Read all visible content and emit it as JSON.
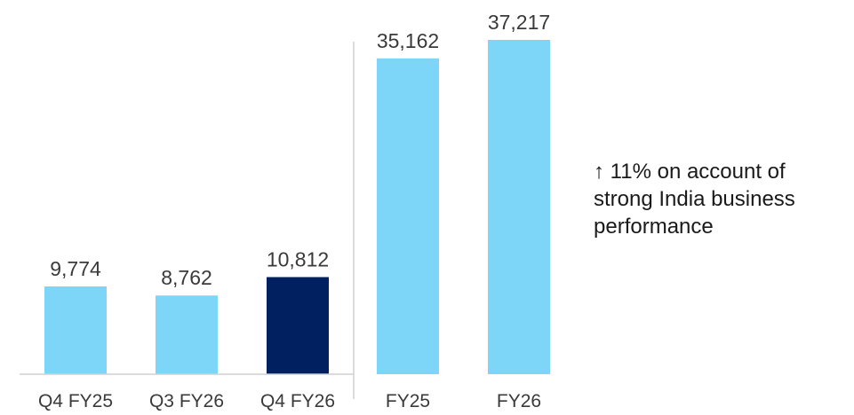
{
  "chart_data": {
    "type": "bar",
    "categories": [
      "Q4 FY25",
      "Q3 FY26",
      "Q4 FY26",
      "FY25",
      "FY26"
    ],
    "values": [
      9774,
      8762,
      10812,
      35162,
      37217
    ],
    "value_labels": [
      "9,774",
      "8,762",
      "10,812",
      "35,162",
      "37,217"
    ],
    "groups": [
      {
        "categories": [
          "Q4 FY25",
          "Q3 FY26",
          "Q4 FY26"
        ]
      },
      {
        "categories": [
          "FY25",
          "FY26"
        ]
      }
    ],
    "highlighted_category": "Q4 FY26",
    "colors": {
      "bar": "#7dd6f7",
      "highlight": "#002060",
      "axis": "#d0d0d0",
      "separator": "#d0d0d0"
    },
    "title": "",
    "xlabel": "",
    "ylabel": "",
    "ylim": [
      0,
      37217
    ],
    "grid": false,
    "legend": "none"
  },
  "annotation": {
    "arrow": "↑",
    "lines": [
      "11% on account of",
      "strong India business",
      "performance"
    ]
  }
}
